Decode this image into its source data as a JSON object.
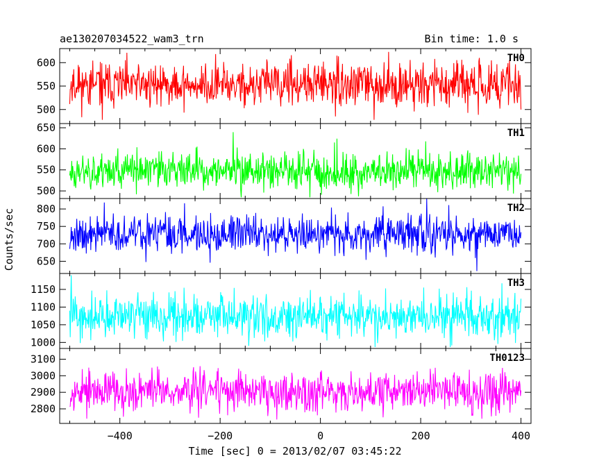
{
  "header": {
    "title": "ae130207034522_wam3_trn",
    "bin_time": "Bin time: 1.0 s"
  },
  "chart_data": {
    "type": "line",
    "title": "ae130207034522_wam3_trn",
    "subtitle": "Bin time: 1.0 s",
    "xlabel": "Time [sec] 0 = 2013/02/07 03:45:22",
    "ylabel": "Counts/sec",
    "xlim": [
      -520,
      420
    ],
    "x_range": [
      -500,
      400
    ],
    "x_step": 1,
    "xticks": [
      -400,
      -200,
      0,
      200,
      400
    ],
    "xtick_labels": [
      "−400",
      "−200",
      "0",
      "200",
      "400"
    ],
    "series": [
      {
        "name": "TH0",
        "color": "#ff0000",
        "ylim": [
          470,
          630
        ],
        "yticks": [
          500,
          550,
          600
        ],
        "ytick_labels": [
          "500",
          "550",
          "600"
        ],
        "mean": 553,
        "spread": 23,
        "min": 478,
        "max": 628,
        "seed": 11
      },
      {
        "name": "TH1",
        "color": "#00ff00",
        "ylim": [
          482,
          660
        ],
        "yticks": [
          500,
          550,
          600,
          650
        ],
        "ytick_labels": [
          "500",
          "550",
          "600",
          "650"
        ],
        "mean": 548,
        "spread": 22,
        "min": 485,
        "max": 660,
        "seed": 23
      },
      {
        "name": "TH2",
        "color": "#0000ff",
        "ylim": [
          615,
          830
        ],
        "yticks": [
          650,
          700,
          750,
          800
        ],
        "ytick_labels": [
          "650",
          "700",
          "750",
          "800"
        ],
        "mean": 728,
        "spread": 27,
        "min": 617,
        "max": 830,
        "seed": 37
      },
      {
        "name": "TH3",
        "color": "#00ffff",
        "ylim": [
          983,
          1195
        ],
        "yticks": [
          1000,
          1050,
          1100,
          1150
        ],
        "ytick_labels": [
          "1000",
          "1050",
          "1100",
          "1150"
        ],
        "mean": 1073,
        "spread": 30,
        "min": 987,
        "max": 1190,
        "seed": 41
      },
      {
        "name": "TH0123",
        "color": "#ff00ff",
        "ylim": [
          2712,
          3165
        ],
        "yticks": [
          2800,
          2900,
          3000,
          3100
        ],
        "ytick_labels": [
          "2800",
          "2900",
          "3000",
          "3100"
        ],
        "mean": 2910,
        "spread": 62,
        "min": 2715,
        "max": 3162,
        "seed": 53
      }
    ],
    "grid": false,
    "legend": "per-panel label top-right"
  }
}
